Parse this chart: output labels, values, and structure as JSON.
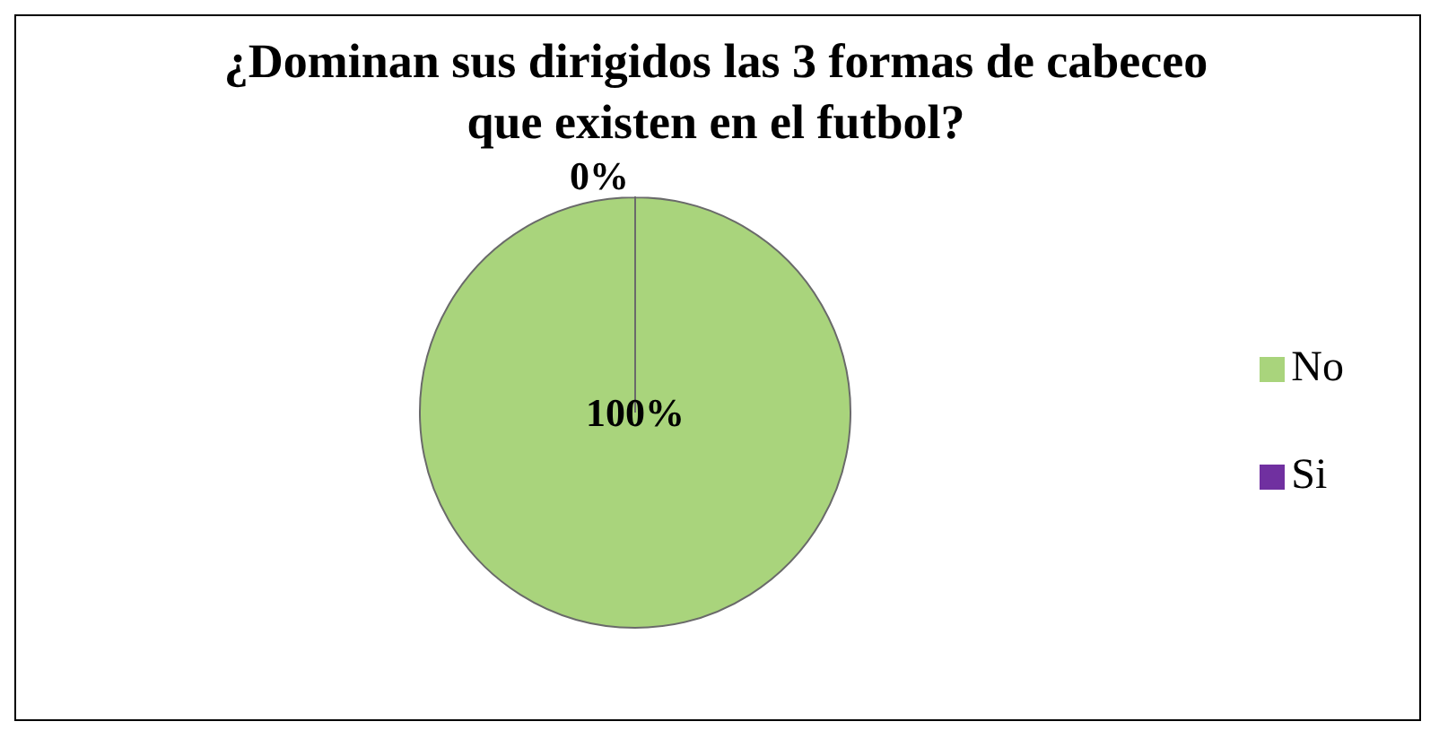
{
  "chart_data": {
    "type": "pie",
    "title": "¿Dominan sus dirigidos las 3 formas de cabeceo que existen en el futbol?",
    "categories": [
      "Si",
      "No"
    ],
    "values": [
      0,
      100
    ],
    "colors": [
      "#7030a0",
      "#a9d47c"
    ],
    "value_labels": [
      "0%",
      "100%"
    ],
    "legend": "right"
  }
}
